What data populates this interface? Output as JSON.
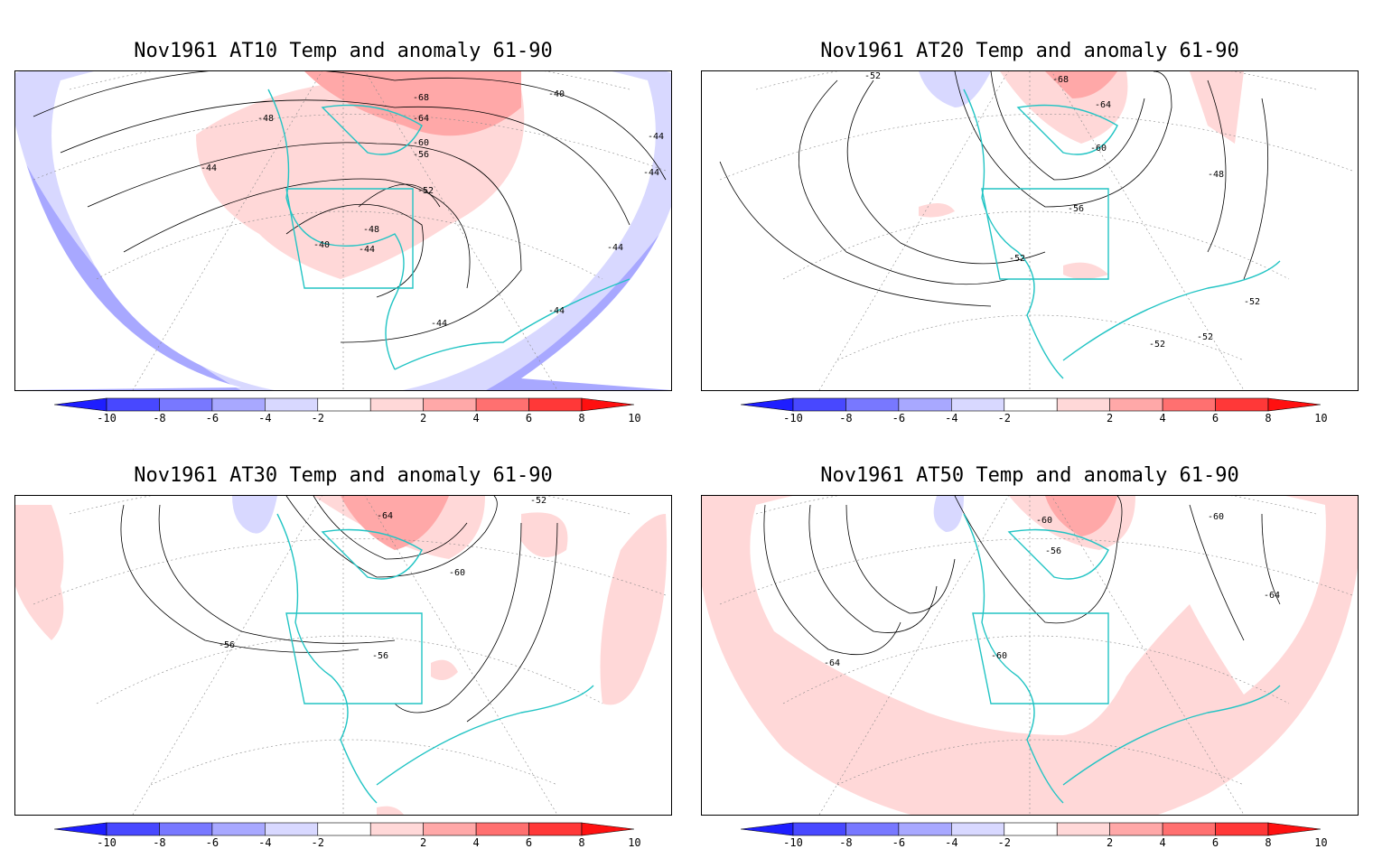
{
  "panels": [
    {
      "title": "Nov1961 AT10 Temp and anomaly 61-90",
      "contour_labels": [
        "-48",
        "-44",
        "-40",
        "-44",
        "-48",
        "-52",
        "-56",
        "-60",
        "-64",
        "-68",
        "-40",
        "-44",
        "-44",
        "-44",
        "-44",
        "-44"
      ]
    },
    {
      "title": "Nov1961 AT20 Temp and anomaly 61-90",
      "contour_labels": [
        "-52",
        "-68",
        "-64",
        "-60",
        "-56",
        "-52",
        "-48",
        "-52",
        "-52",
        "-52"
      ]
    },
    {
      "title": "Nov1961 AT30 Temp and anomaly 61-90",
      "contour_labels": [
        "-64",
        "-52",
        "-60",
        "-56",
        "-56"
      ]
    },
    {
      "title": "Nov1961 AT50 Temp and anomaly 61-90",
      "contour_labels": [
        "-60",
        "-56",
        "-60",
        "-64",
        "-60",
        "-64"
      ]
    }
  ],
  "colorbar": {
    "labels": [
      "-10",
      "-8",
      "-6",
      "-4",
      "-2",
      "2",
      "4",
      "6",
      "8",
      "10"
    ],
    "colors": [
      "#1e1eff",
      "#4848ff",
      "#7878ff",
      "#a8a8ff",
      "#d8d8ff",
      "#ffffff",
      "#ffd8d8",
      "#ffa8a8",
      "#ff7070",
      "#ff3838",
      "#ff1010"
    ]
  },
  "colors": {
    "coastline": "#22c4c4",
    "contour": "#000000",
    "grid": "#888888"
  }
}
